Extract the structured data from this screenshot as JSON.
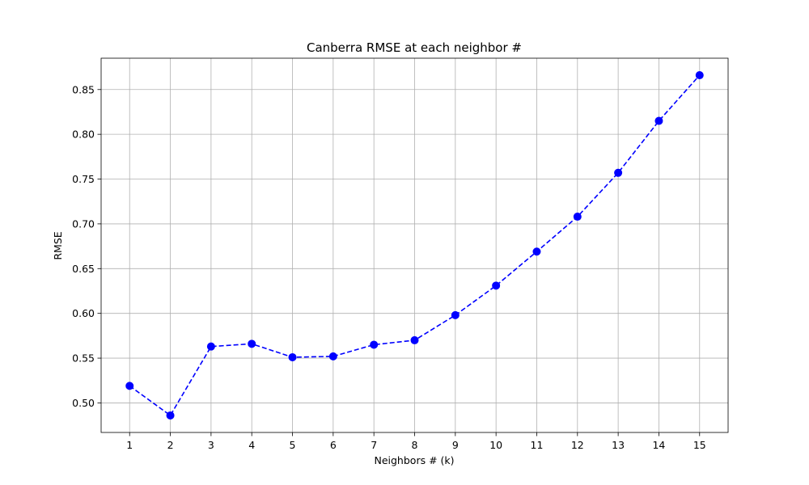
{
  "chart_data": {
    "type": "line",
    "title": "Canberra RMSE at each neighbor #",
    "xlabel": "Neighbors # (k)",
    "ylabel": "RMSE",
    "x": [
      1,
      2,
      3,
      4,
      5,
      6,
      7,
      8,
      9,
      10,
      11,
      12,
      13,
      14,
      15
    ],
    "series": [
      {
        "values": [
          0.519,
          0.486,
          0.563,
          0.566,
          0.551,
          0.552,
          0.565,
          0.57,
          0.598,
          0.631,
          0.669,
          0.708,
          0.757,
          0.815,
          0.866
        ],
        "color": "#0000ff",
        "line_style": "dashed",
        "marker": "circle"
      }
    ],
    "xticks": [
      "1",
      "2",
      "3",
      "4",
      "5",
      "6",
      "7",
      "8",
      "9",
      "10",
      "11",
      "12",
      "13",
      "14",
      "15"
    ],
    "yticks": [
      "0.50",
      "0.55",
      "0.60",
      "0.65",
      "0.70",
      "0.75",
      "0.80",
      "0.85"
    ],
    "xlim": [
      0.3,
      15.7
    ],
    "ylim": [
      0.467,
      0.885
    ],
    "grid": true
  }
}
